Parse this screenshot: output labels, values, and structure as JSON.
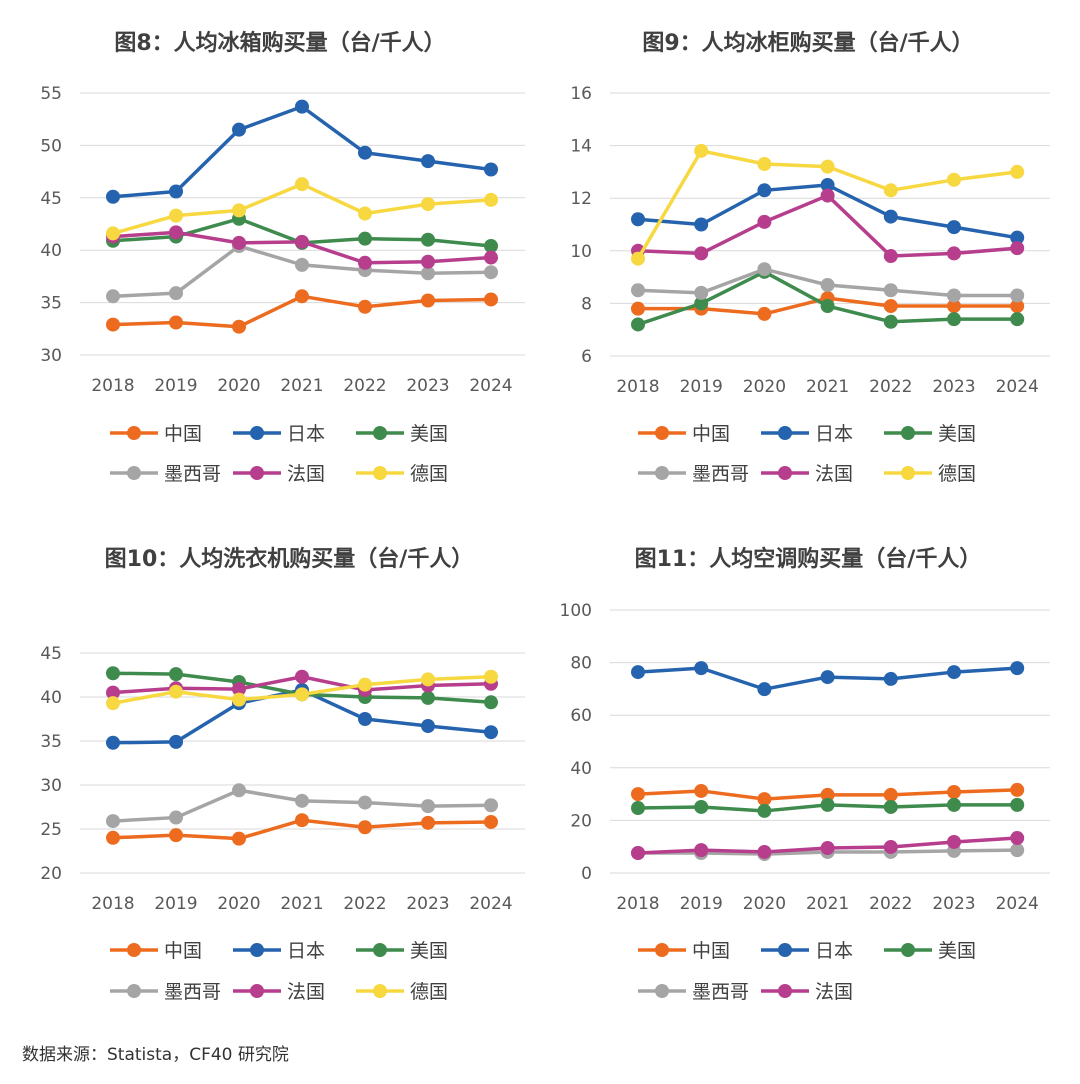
{
  "source": "数据来源：Statista，CF40 研究院",
  "colors": {
    "中国": "#ED6B1E",
    "日本": "#2563AE",
    "美国": "#3F8B4E",
    "墨西哥": "#A5A5A5",
    "法国": "#B63E8D",
    "德国": "#F7D841"
  },
  "chart_data": [
    {
      "type": "line",
      "title": "图8：人均冰箱购买量（台/千人）",
      "categories": [
        "2018",
        "2019",
        "2020",
        "2021",
        "2022",
        "2023",
        "2024"
      ],
      "ylim": [
        30,
        55
      ],
      "yticks": [
        "30",
        "35",
        "40",
        "45",
        "50",
        "55"
      ],
      "grid": true,
      "legend": "bottom",
      "series": [
        {
          "name": "中国",
          "values": [
            32.9,
            33.1,
            32.7,
            35.6,
            34.6,
            35.2,
            35.3
          ]
        },
        {
          "name": "日本",
          "values": [
            45.1,
            45.6,
            51.5,
            53.7,
            49.3,
            48.5,
            47.7
          ]
        },
        {
          "name": "美国",
          "values": [
            40.9,
            41.3,
            43.0,
            40.7,
            41.1,
            41.0,
            40.4
          ]
        },
        {
          "name": "墨西哥",
          "values": [
            35.6,
            35.9,
            40.4,
            38.6,
            38.1,
            37.8,
            37.9
          ]
        },
        {
          "name": "法国",
          "values": [
            41.3,
            41.7,
            40.7,
            40.8,
            38.8,
            38.9,
            39.3
          ]
        },
        {
          "name": "德国",
          "values": [
            41.6,
            43.3,
            43.8,
            46.3,
            43.5,
            44.4,
            44.8
          ]
        }
      ]
    },
    {
      "type": "line",
      "title": "图9：人均冰柜购买量（台/千人）",
      "categories": [
        "2018",
        "2019",
        "2020",
        "2021",
        "2022",
        "2023",
        "2024"
      ],
      "ylim": [
        6,
        16
      ],
      "yticks": [
        "6",
        "8",
        "10",
        "12",
        "14",
        "16"
      ],
      "grid": true,
      "legend": "bottom",
      "series": [
        {
          "name": "中国",
          "values": [
            7.8,
            7.8,
            7.6,
            8.2,
            7.9,
            7.9,
            7.9
          ]
        },
        {
          "name": "日本",
          "values": [
            11.2,
            11.0,
            12.3,
            12.5,
            11.3,
            10.9,
            10.5
          ]
        },
        {
          "name": "美国",
          "values": [
            7.2,
            8.0,
            9.2,
            7.9,
            7.3,
            7.4,
            7.4
          ]
        },
        {
          "name": "墨西哥",
          "values": [
            8.5,
            8.4,
            9.3,
            8.7,
            8.5,
            8.3,
            8.3
          ]
        },
        {
          "name": "法国",
          "values": [
            10.0,
            9.9,
            11.1,
            12.1,
            9.8,
            9.9,
            10.1
          ]
        },
        {
          "name": "德国",
          "values": [
            9.7,
            13.8,
            13.3,
            13.2,
            12.3,
            12.7,
            13.0
          ]
        }
      ]
    },
    {
      "type": "line",
      "title": "图10：人均洗衣机购买量（台/千人）",
      "categories": [
        "2018",
        "2019",
        "2020",
        "2021",
        "2022",
        "2023",
        "2024"
      ],
      "ylim": [
        20,
        45
      ],
      "yticks": [
        "20",
        "25",
        "30",
        "35",
        "40",
        "45"
      ],
      "grid": true,
      "legend": "bottom",
      "series": [
        {
          "name": "中国",
          "values": [
            24.0,
            24.3,
            23.9,
            26.0,
            25.2,
            25.7,
            25.8
          ]
        },
        {
          "name": "日本",
          "values": [
            34.8,
            34.9,
            39.3,
            40.8,
            37.5,
            36.7,
            36.0
          ]
        },
        {
          "name": "美国",
          "values": [
            42.7,
            42.6,
            41.7,
            40.3,
            40.0,
            39.9,
            39.4
          ]
        },
        {
          "name": "墨西哥",
          "values": [
            25.9,
            26.3,
            29.4,
            28.2,
            28.0,
            27.6,
            27.7
          ]
        },
        {
          "name": "法国",
          "values": [
            40.5,
            41.0,
            40.9,
            42.3,
            40.8,
            41.3,
            41.5
          ]
        },
        {
          "name": "德国",
          "values": [
            39.3,
            40.6,
            39.7,
            40.3,
            41.4,
            42.0,
            42.3
          ]
        }
      ]
    },
    {
      "type": "line",
      "title": "图11：人均空调购买量（台/千人）",
      "categories": [
        "2018",
        "2019",
        "2020",
        "2021",
        "2022",
        "2023",
        "2024"
      ],
      "ylim": [
        0,
        100
      ],
      "yticks": [
        "0",
        "20",
        "40",
        "60",
        "80",
        "100"
      ],
      "grid": true,
      "legend": "bottom",
      "series": [
        {
          "name": "中国",
          "values": [
            30.0,
            31.2,
            28.1,
            29.7,
            29.7,
            30.8,
            31.6
          ]
        },
        {
          "name": "日本",
          "values": [
            76.4,
            77.9,
            69.9,
            74.5,
            73.8,
            76.4,
            77.9
          ]
        },
        {
          "name": "美国",
          "values": [
            24.7,
            25.1,
            23.6,
            25.9,
            25.1,
            25.9,
            25.9
          ]
        },
        {
          "name": "墨西哥",
          "values": [
            7.6,
            7.6,
            7.2,
            8.0,
            8.0,
            8.4,
            8.7
          ]
        },
        {
          "name": "法国",
          "values": [
            7.6,
            8.7,
            8.0,
            9.5,
            9.9,
            11.8,
            13.3
          ]
        }
      ]
    }
  ]
}
